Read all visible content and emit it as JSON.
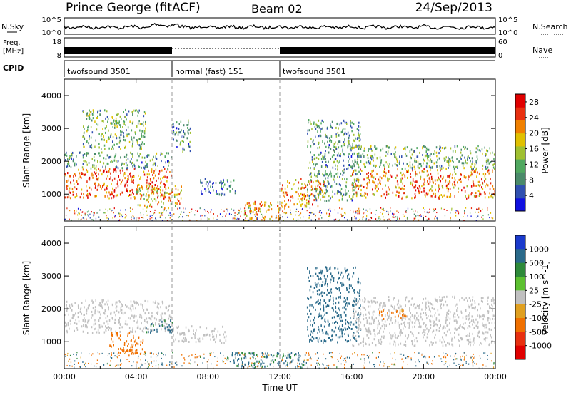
{
  "header": {
    "title": "Prince George (fitACF)",
    "beam": "Beam 02",
    "date": "24/Sep/2013"
  },
  "nsky_panel": {
    "left_label": "N.Sky",
    "left_ticks": [
      "10^5",
      "10^0"
    ],
    "right_label": "N.Search",
    "right_ticks": [
      "10^5",
      "10^0"
    ]
  },
  "freq_panel": {
    "left_label_line1": "Freq.",
    "left_label_line2": "[MHz]",
    "left_ticks": [
      "18",
      "8"
    ],
    "right_label": "Nave",
    "right_ticks": [
      "60",
      "0"
    ]
  },
  "cpid": {
    "label": "CPID",
    "segments": [
      {
        "name": "twofsound 3501",
        "start_hour": 0,
        "end_hour": 6
      },
      {
        "name": "normal (fast) 151",
        "start_hour": 6,
        "end_hour": 12
      },
      {
        "name": "twofsound 3501",
        "start_hour": 12,
        "end_hour": 24
      }
    ]
  },
  "colors": {
    "power_scale": [
      "#1010e0",
      "#3050b0",
      "#4a8a6a",
      "#50a860",
      "#a0c030",
      "#e0c000",
      "#f08000",
      "#e83010",
      "#e00000"
    ],
    "velocity_scale": [
      "#1a3acc",
      "#2a6a8a",
      "#2e8a3a",
      "#5cc030",
      "#c0c0c0",
      "#e0a020",
      "#f07000",
      "#e83010",
      "#e00000"
    ]
  },
  "chart_data": [
    {
      "type": "heatmap",
      "title": "Power",
      "xlabel": "Time UT",
      "ylabel": "Slant Range [km]",
      "xlim_hours": [
        0,
        24
      ],
      "x_ticks": [
        "00:00",
        "04:00",
        "08:00",
        "12:00",
        "16:00",
        "20:00",
        "00:00"
      ],
      "ylim": [
        180,
        4500
      ],
      "y_ticks": [
        1000,
        2000,
        3000,
        4000
      ],
      "colorbar": {
        "label": "Power [dB]",
        "ticks": [
          4,
          8,
          12,
          16,
          20,
          24,
          28
        ],
        "range": [
          0,
          30
        ]
      },
      "regions": [
        {
          "t0": 0.0,
          "t1": 6.0,
          "r0": 900,
          "r1": 1800,
          "level": 24
        },
        {
          "t0": 0.0,
          "t1": 6.0,
          "r0": 1800,
          "r1": 2300,
          "level": 10
        },
        {
          "t0": 1.0,
          "t1": 4.5,
          "r0": 2400,
          "r1": 3600,
          "level": 12
        },
        {
          "t0": 4.0,
          "t1": 6.5,
          "r0": 600,
          "r1": 1300,
          "level": 18
        },
        {
          "t0": 6.0,
          "t1": 7.0,
          "r0": 2300,
          "r1": 3300,
          "level": 8
        },
        {
          "t0": 7.5,
          "t1": 9.5,
          "r0": 1000,
          "r1": 1500,
          "level": 6
        },
        {
          "t0": 10.0,
          "t1": 12.0,
          "r0": 200,
          "r1": 800,
          "level": 20
        },
        {
          "t0": 12.0,
          "t1": 14.5,
          "r0": 600,
          "r1": 1500,
          "level": 22
        },
        {
          "t0": 13.5,
          "t1": 16.5,
          "r0": 800,
          "r1": 3300,
          "level": 10
        },
        {
          "t0": 16.0,
          "t1": 24.0,
          "r0": 900,
          "r1": 1800,
          "level": 22
        },
        {
          "t0": 16.0,
          "t1": 24.0,
          "r0": 1800,
          "r1": 2500,
          "level": 12
        }
      ]
    },
    {
      "type": "heatmap",
      "title": "Velocity",
      "xlabel": "Time UT",
      "ylabel": "Slant Range [km]",
      "xlim_hours": [
        0,
        24
      ],
      "x_ticks": [
        "00:00",
        "04:00",
        "08:00",
        "12:00",
        "16:00",
        "20:00",
        "00:00"
      ],
      "ylim": [
        180,
        4500
      ],
      "y_ticks": [
        1000,
        2000,
        3000,
        4000
      ],
      "colorbar": {
        "label": "Velocity [m s^-1]",
        "ticks": [
          1000,
          500,
          100,
          25,
          -25,
          -100,
          -500,
          -1000
        ]
      },
      "regions": [
        {
          "t0": 0.0,
          "t1": 6.0,
          "r0": 1300,
          "r1": 2300,
          "velocity": 0
        },
        {
          "t0": 2.5,
          "t1": 4.5,
          "r0": 600,
          "r1": 1300,
          "velocity": -300
        },
        {
          "t0": 4.5,
          "t1": 6.0,
          "r0": 1300,
          "r1": 1700,
          "velocity": 150
        },
        {
          "t0": 6.0,
          "t1": 9.0,
          "r0": 1000,
          "r1": 1500,
          "velocity": 0
        },
        {
          "t0": 9.0,
          "t1": 13.5,
          "r0": 250,
          "r1": 700,
          "velocity": 120
        },
        {
          "t0": 13.5,
          "t1": 16.5,
          "r0": 1000,
          "r1": 3300,
          "velocity": 200
        },
        {
          "t0": 16.0,
          "t1": 24.0,
          "r0": 900,
          "r1": 2400,
          "velocity": 0
        },
        {
          "t0": 17.5,
          "t1": 19.0,
          "r0": 1700,
          "r1": 2000,
          "velocity": -150
        }
      ]
    }
  ]
}
